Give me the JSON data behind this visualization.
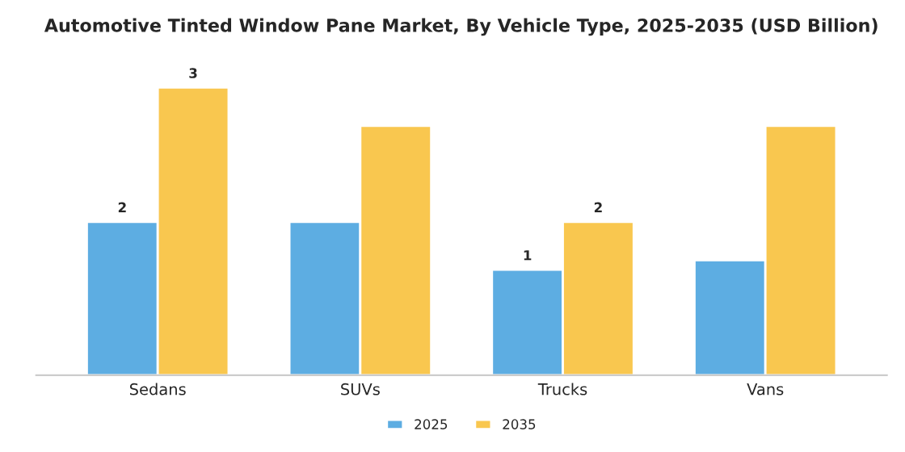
{
  "chart_data": {
    "type": "bar",
    "title": "Automotive Tinted Window Pane Market, By Vehicle Type, 2025-2035 (USD Billion)",
    "categories": [
      "Sedans",
      "SUVs",
      "Trucks",
      "Vans"
    ],
    "series": [
      {
        "name": "2025",
        "color": "#5dade2",
        "values": [
          1.6,
          1.6,
          1.1,
          1.2
        ],
        "value_labels": [
          "2",
          null,
          "1",
          null
        ]
      },
      {
        "name": "2035",
        "color": "#f9c74f",
        "values": [
          3.0,
          2.6,
          1.6,
          2.6
        ],
        "value_labels": [
          "3",
          null,
          "2",
          null
        ]
      }
    ],
    "legend": "bottom",
    "grid": false
  }
}
